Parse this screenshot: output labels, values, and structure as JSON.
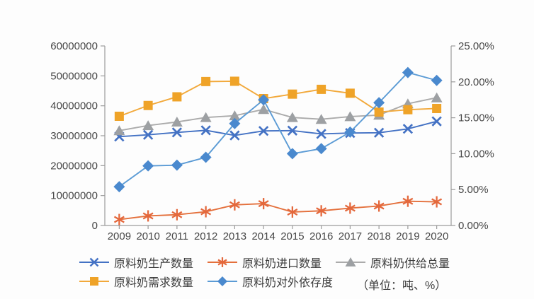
{
  "chart_data": {
    "type": "line",
    "title": "",
    "unit_label": "（单位：吨、%）",
    "grid": false,
    "legend_position": "bottom",
    "x": [
      "2009",
      "2010",
      "2011",
      "2012",
      "2013",
      "2014",
      "2015",
      "2016",
      "2017",
      "2018",
      "2019",
      "2020"
    ],
    "left_axis": {
      "min": 0,
      "max": 60000000,
      "tick_labels": [
        "0",
        "10000000",
        "20000000",
        "30000000",
        "40000000",
        "50000000",
        "60000000"
      ]
    },
    "right_axis": {
      "min": 0,
      "max": 25,
      "tick_labels": [
        "0.00%",
        "5.00%",
        "10.00%",
        "15.00%",
        "20.00%",
        "25.00%"
      ]
    },
    "series": [
      {
        "name": "原料奶生产数量",
        "marker": "cross",
        "color": "#4472c4",
        "marker_color": "#4472c4",
        "axis": "left",
        "values": [
          29700000,
          30300000,
          31100000,
          31800000,
          30100000,
          31600000,
          31700000,
          30600000,
          30900000,
          31000000,
          32300000,
          34800000
        ]
      },
      {
        "name": "原料奶进口数量",
        "marker": "asterisk",
        "color": "#e4703c",
        "marker_color": "#e4683c",
        "axis": "left",
        "values": [
          2000000,
          3200000,
          3600000,
          4600000,
          6900000,
          7300000,
          4500000,
          4900000,
          5800000,
          6500000,
          8100000,
          7900000
        ]
      },
      {
        "name": "原料奶供给总量",
        "marker": "triangle",
        "color": "#ababab",
        "marker_color": "#9da0a3",
        "axis": "left",
        "values": [
          31700000,
          33400000,
          34600000,
          36100000,
          36700000,
          38800000,
          36100000,
          35500000,
          36400000,
          36900000,
          40700000,
          42700000
        ]
      },
      {
        "name": "原料奶需求数量",
        "marker": "square",
        "color": "#f2a93b",
        "marker_color": "#efa328",
        "axis": "left",
        "values": [
          36500000,
          40100000,
          43000000,
          48100000,
          48200000,
          42400000,
          43900000,
          45500000,
          44200000,
          37900000,
          38700000,
          39100000
        ]
      },
      {
        "name": "原料奶对外依存度",
        "marker": "diamond",
        "color": "#5b9bd5",
        "marker_color": "#4a89ce",
        "axis": "right",
        "values": [
          5.4,
          8.3,
          8.4,
          9.5,
          14.2,
          17.5,
          10.0,
          10.7,
          13.0,
          17.1,
          21.3,
          20.2
        ]
      }
    ],
    "style": {
      "axis_color": "#9b9b9b",
      "text_color": "#474747"
    }
  }
}
